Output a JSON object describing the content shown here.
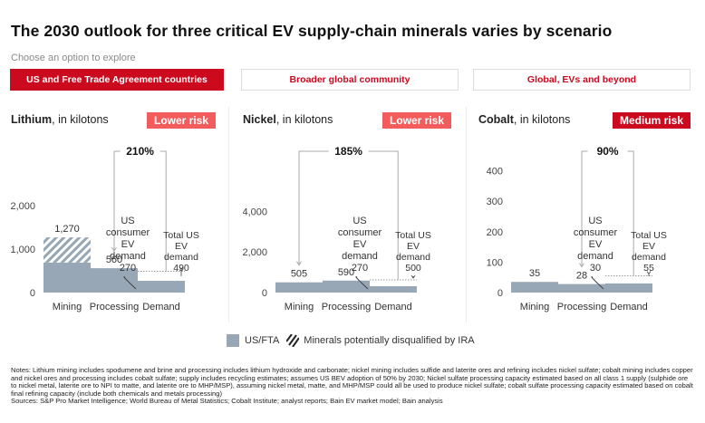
{
  "header": {
    "title": "The 2030 outlook for three critical EV supply-chain minerals varies by scenario",
    "subtitle": "Choose an option to explore"
  },
  "tabs": [
    {
      "label": "US and Free Trade Agreement countries",
      "active": true
    },
    {
      "label": "Broader global community",
      "active": false
    },
    {
      "label": "Global, EVs and beyond",
      "active": false
    }
  ],
  "colors": {
    "accent": "#cc0a1f",
    "lower_risk": "#f25c5c",
    "medium_risk": "#cc0a1f",
    "bar": "#97a7b6",
    "hatch": "#97a7b6"
  },
  "legend": {
    "usfta": "US/FTA",
    "disqualified": "Minerals potentially disqualified by IRA"
  },
  "notes": "Notes: Lithium mining includes spodumene and brine and processing includes lithium hydroxide and carbonate; nickel mining includes sulfide and laterite ores and refining includes nickel sulfate; cobalt mining includes copper and nickel ores and processing includes cobalt sulfate; supply includes recycling estimates; assumes US BEV adoption of 50% by 2030; Nickel sulfate processing capacity estimated based on all class 1 supply (sulphide ore to nickel metal, laterite ore to NPI to matte, and laterite ore to MHP/MSP), assuming nickel metal, matte, and MHP/MSP could all be used to produce nickel sulfate; cobalt sulfate processing capacity estimated based on cobalt final refining capacity (include both chemicals and metals processing)",
  "sources": "Sources: S&P Pro Market Intelligence; World Bureau of Metal Statistics; Cobalt Institute; analyst reports; Bain EV market model; Bain analysis",
  "chart_data": [
    {
      "type": "bar",
      "mineral": "Lithium",
      "unit_label": ", in kilotons",
      "risk_label": "Lower risk",
      "risk_level": "lower",
      "categories": [
        "Mining",
        "Processing",
        "Demand"
      ],
      "series": [
        {
          "name": "US/FTA",
          "values": [
            690,
            560,
            270
          ]
        },
        {
          "name": "Minerals potentially disqualified by IRA",
          "values": [
            580,
            0,
            0
          ]
        }
      ],
      "value_labels": [
        "1,270",
        "560",
        ""
      ],
      "total_demand": 490,
      "consumer_demand": 270,
      "consumer_label": [
        "US",
        "consumer",
        "EV",
        "demand",
        "270"
      ],
      "total_label": [
        "Total US",
        "EV",
        "demand",
        "490"
      ],
      "gap_label": "210%",
      "gap_from": "Processing",
      "yticks": [
        0,
        1000,
        2000
      ],
      "ytick_labels": [
        "0",
        "1,000",
        "2,000"
      ],
      "ylim": [
        0,
        3500
      ]
    },
    {
      "type": "bar",
      "mineral": "Nickel",
      "unit_label": ", in kilotons",
      "risk_label": "Lower risk",
      "risk_level": "lower",
      "categories": [
        "Mining",
        "Processing",
        "Demand"
      ],
      "series": [
        {
          "name": "US/FTA",
          "values": [
            505,
            590,
            270
          ]
        },
        {
          "name": "Minerals potentially disqualified by IRA",
          "values": [
            0,
            0,
            0
          ]
        }
      ],
      "value_labels": [
        "505",
        "590",
        ""
      ],
      "total_demand": 500,
      "consumer_demand": 270,
      "consumer_label": [
        "US",
        "consumer",
        "EV",
        "demand",
        "270"
      ],
      "total_label": [
        "Total US",
        "EV",
        "demand",
        "500"
      ],
      "gap_label": "185%",
      "gap_from": "Mining",
      "yticks": [
        0,
        2000,
        4000
      ],
      "ytick_labels": [
        "0",
        "2,000",
        "4,000"
      ],
      "ylim": [
        0,
        7500
      ]
    },
    {
      "type": "bar",
      "mineral": "Cobalt",
      "unit_label": ", in kilotons",
      "risk_label": "Medium risk",
      "risk_level": "medium",
      "categories": [
        "Mining",
        "Processing",
        "Demand"
      ],
      "series": [
        {
          "name": "US/FTA",
          "values": [
            35,
            28,
            30
          ]
        },
        {
          "name": "Minerals potentially disqualified by IRA",
          "values": [
            0,
            0,
            0
          ]
        }
      ],
      "value_labels": [
        "35",
        "28",
        ""
      ],
      "total_demand": 55,
      "consumer_demand": 30,
      "consumer_label": [
        "US",
        "consumer",
        "EV",
        "demand",
        "30"
      ],
      "total_label": [
        "Total US",
        "EV",
        "demand",
        "55"
      ],
      "gap_label": "90%",
      "gap_from": "Processing",
      "yticks": [
        0,
        100,
        200,
        300,
        400
      ],
      "ytick_labels": [
        "0",
        "100",
        "200",
        "300",
        "400"
      ],
      "ylim": [
        0,
        500
      ]
    }
  ]
}
